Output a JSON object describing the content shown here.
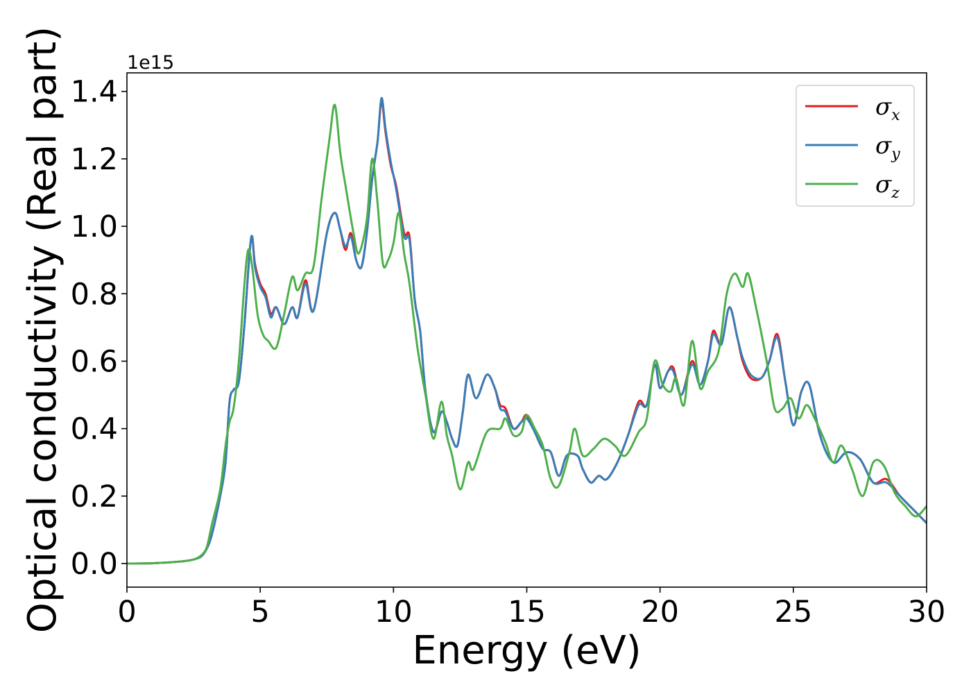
{
  "chart_data": {
    "type": "line",
    "xlabel": "Energy (eV)",
    "ylabel": "Optical conductivity (Real part)",
    "y_offset_label": "1e15",
    "xlim": [
      0,
      30
    ],
    "ylim": [
      -0.07,
      1.455
    ],
    "x_ticks": [
      0,
      5,
      10,
      15,
      20,
      25,
      30
    ],
    "x_tick_labels": [
      "0",
      "5",
      "10",
      "15",
      "20",
      "25",
      "30"
    ],
    "y_ticks": [
      0.0,
      0.2,
      0.4,
      0.6,
      0.8,
      1.0,
      1.2,
      1.4
    ],
    "y_tick_labels": [
      "0.0",
      "0.2",
      "0.4",
      "0.6",
      "0.8",
      "1.0",
      "1.2",
      "1.4"
    ],
    "grid": false,
    "legend_position": "top-right",
    "series": [
      {
        "name": "σx",
        "legend_symbol": "σ",
        "legend_sub": "x",
        "color": "#e41a1c",
        "points": [
          [
            0,
            0
          ],
          [
            1,
            0.001
          ],
          [
            2,
            0.006
          ],
          [
            2.5,
            0.012
          ],
          [
            2.8,
            0.022
          ],
          [
            3,
            0.045
          ],
          [
            3.2,
            0.09
          ],
          [
            3.5,
            0.2
          ],
          [
            3.7,
            0.3
          ],
          [
            3.85,
            0.48
          ],
          [
            4,
            0.515
          ],
          [
            4.2,
            0.54
          ],
          [
            4.4,
            0.7
          ],
          [
            4.6,
            0.92
          ],
          [
            4.7,
            0.97
          ],
          [
            4.8,
            0.89
          ],
          [
            5,
            0.83
          ],
          [
            5.2,
            0.8
          ],
          [
            5.4,
            0.74
          ],
          [
            5.6,
            0.76
          ],
          [
            5.9,
            0.71
          ],
          [
            6.2,
            0.76
          ],
          [
            6.4,
            0.73
          ],
          [
            6.7,
            0.84
          ],
          [
            7,
            0.75
          ],
          [
            7.5,
            0.98
          ],
          [
            7.8,
            1.04
          ],
          [
            8,
            0.99
          ],
          [
            8.2,
            0.93
          ],
          [
            8.4,
            0.98
          ],
          [
            8.6,
            0.9
          ],
          [
            8.8,
            0.88
          ],
          [
            9,
            0.98
          ],
          [
            9.2,
            1.14
          ],
          [
            9.4,
            1.25
          ],
          [
            9.55,
            1.37
          ],
          [
            9.7,
            1.28
          ],
          [
            9.9,
            1.18
          ],
          [
            10.1,
            1.12
          ],
          [
            10.4,
            0.98
          ],
          [
            10.6,
            0.97
          ],
          [
            10.8,
            0.78
          ],
          [
            11,
            0.69
          ],
          [
            11.2,
            0.51
          ],
          [
            11.5,
            0.39
          ],
          [
            11.8,
            0.45
          ],
          [
            12,
            0.42
          ],
          [
            12.2,
            0.37
          ],
          [
            12.4,
            0.35
          ],
          [
            12.6,
            0.45
          ],
          [
            12.8,
            0.56
          ],
          [
            13.1,
            0.49
          ],
          [
            13.5,
            0.56
          ],
          [
            13.8,
            0.52
          ],
          [
            14,
            0.47
          ],
          [
            14.2,
            0.46
          ],
          [
            14.5,
            0.4
          ],
          [
            14.8,
            0.42
          ],
          [
            15,
            0.44
          ],
          [
            15.3,
            0.39
          ],
          [
            15.6,
            0.34
          ],
          [
            15.9,
            0.33
          ],
          [
            16.2,
            0.26
          ],
          [
            16.5,
            0.32
          ],
          [
            16.9,
            0.32
          ],
          [
            17.1,
            0.28
          ],
          [
            17.4,
            0.24
          ],
          [
            17.7,
            0.26
          ],
          [
            18,
            0.25
          ],
          [
            18.4,
            0.3
          ],
          [
            18.8,
            0.38
          ],
          [
            19.2,
            0.48
          ],
          [
            19.5,
            0.47
          ],
          [
            19.8,
            0.59
          ],
          [
            20,
            0.52
          ],
          [
            20.3,
            0.57
          ],
          [
            20.5,
            0.58
          ],
          [
            20.8,
            0.5
          ],
          [
            21.2,
            0.6
          ],
          [
            21.5,
            0.53
          ],
          [
            21.8,
            0.6
          ],
          [
            22,
            0.69
          ],
          [
            22.3,
            0.65
          ],
          [
            22.6,
            0.76
          ],
          [
            22.9,
            0.67
          ],
          [
            23.1,
            0.6
          ],
          [
            23.4,
            0.55
          ],
          [
            23.8,
            0.55
          ],
          [
            24.1,
            0.6
          ],
          [
            24.4,
            0.68
          ],
          [
            24.7,
            0.54
          ],
          [
            25,
            0.41
          ],
          [
            25.3,
            0.51
          ],
          [
            25.6,
            0.53
          ],
          [
            26,
            0.38
          ],
          [
            26.5,
            0.3
          ],
          [
            27,
            0.33
          ],
          [
            27.5,
            0.31
          ],
          [
            28,
            0.24
          ],
          [
            28.5,
            0.25
          ],
          [
            29,
            0.2
          ],
          [
            29.5,
            0.16
          ],
          [
            30,
            0.12
          ]
        ]
      },
      {
        "name": "σy",
        "legend_symbol": "σ",
        "legend_sub": "y",
        "color": "#377eb8",
        "points": [
          [
            0,
            0
          ],
          [
            1,
            0.001
          ],
          [
            2,
            0.006
          ],
          [
            2.5,
            0.012
          ],
          [
            2.8,
            0.022
          ],
          [
            3,
            0.045
          ],
          [
            3.2,
            0.09
          ],
          [
            3.5,
            0.2
          ],
          [
            3.7,
            0.3
          ],
          [
            3.85,
            0.48
          ],
          [
            4,
            0.515
          ],
          [
            4.2,
            0.54
          ],
          [
            4.4,
            0.7
          ],
          [
            4.6,
            0.92
          ],
          [
            4.7,
            0.97
          ],
          [
            4.8,
            0.88
          ],
          [
            5,
            0.82
          ],
          [
            5.2,
            0.79
          ],
          [
            5.4,
            0.73
          ],
          [
            5.6,
            0.76
          ],
          [
            5.9,
            0.71
          ],
          [
            6.2,
            0.76
          ],
          [
            6.4,
            0.73
          ],
          [
            6.7,
            0.83
          ],
          [
            7,
            0.75
          ],
          [
            7.5,
            0.98
          ],
          [
            7.8,
            1.04
          ],
          [
            8,
            0.99
          ],
          [
            8.2,
            0.94
          ],
          [
            8.4,
            0.97
          ],
          [
            8.6,
            0.9
          ],
          [
            8.8,
            0.88
          ],
          [
            9,
            0.98
          ],
          [
            9.2,
            1.14
          ],
          [
            9.4,
            1.25
          ],
          [
            9.55,
            1.38
          ],
          [
            9.7,
            1.29
          ],
          [
            9.9,
            1.19
          ],
          [
            10.1,
            1.11
          ],
          [
            10.4,
            0.97
          ],
          [
            10.6,
            0.96
          ],
          [
            10.8,
            0.78
          ],
          [
            11,
            0.69
          ],
          [
            11.2,
            0.51
          ],
          [
            11.5,
            0.39
          ],
          [
            11.8,
            0.45
          ],
          [
            12,
            0.42
          ],
          [
            12.2,
            0.37
          ],
          [
            12.4,
            0.35
          ],
          [
            12.6,
            0.45
          ],
          [
            12.8,
            0.56
          ],
          [
            13.1,
            0.49
          ],
          [
            13.5,
            0.56
          ],
          [
            13.8,
            0.52
          ],
          [
            14,
            0.46
          ],
          [
            14.2,
            0.45
          ],
          [
            14.5,
            0.4
          ],
          [
            14.8,
            0.42
          ],
          [
            15,
            0.43
          ],
          [
            15.3,
            0.39
          ],
          [
            15.6,
            0.34
          ],
          [
            15.9,
            0.33
          ],
          [
            16.2,
            0.26
          ],
          [
            16.5,
            0.32
          ],
          [
            16.9,
            0.32
          ],
          [
            17.1,
            0.28
          ],
          [
            17.4,
            0.24
          ],
          [
            17.7,
            0.26
          ],
          [
            18,
            0.25
          ],
          [
            18.4,
            0.3
          ],
          [
            18.8,
            0.38
          ],
          [
            19.2,
            0.47
          ],
          [
            19.5,
            0.47
          ],
          [
            19.8,
            0.59
          ],
          [
            20,
            0.52
          ],
          [
            20.3,
            0.57
          ],
          [
            20.5,
            0.57
          ],
          [
            20.8,
            0.5
          ],
          [
            21.2,
            0.59
          ],
          [
            21.5,
            0.53
          ],
          [
            21.8,
            0.6
          ],
          [
            22,
            0.68
          ],
          [
            22.3,
            0.65
          ],
          [
            22.6,
            0.76
          ],
          [
            22.9,
            0.67
          ],
          [
            23.1,
            0.61
          ],
          [
            23.4,
            0.56
          ],
          [
            23.8,
            0.55
          ],
          [
            24.1,
            0.6
          ],
          [
            24.4,
            0.67
          ],
          [
            24.7,
            0.54
          ],
          [
            25,
            0.41
          ],
          [
            25.3,
            0.51
          ],
          [
            25.6,
            0.53
          ],
          [
            26,
            0.38
          ],
          [
            26.5,
            0.3
          ],
          [
            27,
            0.33
          ],
          [
            27.5,
            0.31
          ],
          [
            28,
            0.24
          ],
          [
            28.5,
            0.24
          ],
          [
            29,
            0.2
          ],
          [
            29.5,
            0.16
          ],
          [
            30,
            0.12
          ]
        ]
      },
      {
        "name": "σz",
        "legend_symbol": "σ",
        "legend_sub": "z",
        "color": "#4daf4a",
        "points": [
          [
            0,
            0
          ],
          [
            1,
            0.001
          ],
          [
            2,
            0.006
          ],
          [
            2.5,
            0.012
          ],
          [
            2.8,
            0.025
          ],
          [
            3,
            0.05
          ],
          [
            3.2,
            0.12
          ],
          [
            3.5,
            0.22
          ],
          [
            3.7,
            0.35
          ],
          [
            3.85,
            0.42
          ],
          [
            4,
            0.46
          ],
          [
            4.2,
            0.6
          ],
          [
            4.4,
            0.82
          ],
          [
            4.55,
            0.93
          ],
          [
            4.7,
            0.88
          ],
          [
            4.9,
            0.74
          ],
          [
            5.1,
            0.68
          ],
          [
            5.3,
            0.66
          ],
          [
            5.6,
            0.64
          ],
          [
            5.9,
            0.74
          ],
          [
            6.2,
            0.85
          ],
          [
            6.4,
            0.81
          ],
          [
            6.7,
            0.86
          ],
          [
            7,
            0.88
          ],
          [
            7.3,
            1.08
          ],
          [
            7.6,
            1.26
          ],
          [
            7.8,
            1.36
          ],
          [
            8,
            1.22
          ],
          [
            8.2,
            1.12
          ],
          [
            8.5,
            0.98
          ],
          [
            8.7,
            0.92
          ],
          [
            9,
            1.02
          ],
          [
            9.2,
            1.2
          ],
          [
            9.4,
            1.07
          ],
          [
            9.6,
            0.89
          ],
          [
            9.8,
            0.9
          ],
          [
            10,
            0.95
          ],
          [
            10.2,
            1.04
          ],
          [
            10.4,
            0.92
          ],
          [
            10.6,
            0.83
          ],
          [
            10.9,
            0.64
          ],
          [
            11.2,
            0.5
          ],
          [
            11.5,
            0.37
          ],
          [
            11.8,
            0.48
          ],
          [
            12,
            0.38
          ],
          [
            12.2,
            0.32
          ],
          [
            12.5,
            0.22
          ],
          [
            12.8,
            0.3
          ],
          [
            13,
            0.28
          ],
          [
            13.5,
            0.39
          ],
          [
            14,
            0.4
          ],
          [
            14.2,
            0.43
          ],
          [
            14.5,
            0.38
          ],
          [
            14.8,
            0.39
          ],
          [
            15,
            0.44
          ],
          [
            15.3,
            0.4
          ],
          [
            15.6,
            0.35
          ],
          [
            15.9,
            0.25
          ],
          [
            16.2,
            0.23
          ],
          [
            16.6,
            0.33
          ],
          [
            16.8,
            0.4
          ],
          [
            17.1,
            0.32
          ],
          [
            17.5,
            0.34
          ],
          [
            17.9,
            0.37
          ],
          [
            18.3,
            0.35
          ],
          [
            18.7,
            0.32
          ],
          [
            19.2,
            0.39
          ],
          [
            19.5,
            0.43
          ],
          [
            19.8,
            0.6
          ],
          [
            20.1,
            0.53
          ],
          [
            20.4,
            0.51
          ],
          [
            20.6,
            0.55
          ],
          [
            20.9,
            0.47
          ],
          [
            21.2,
            0.66
          ],
          [
            21.5,
            0.52
          ],
          [
            21.8,
            0.57
          ],
          [
            22.2,
            0.63
          ],
          [
            22.5,
            0.8
          ],
          [
            22.8,
            0.86
          ],
          [
            23.1,
            0.82
          ],
          [
            23.3,
            0.86
          ],
          [
            23.6,
            0.76
          ],
          [
            24,
            0.6
          ],
          [
            24.3,
            0.46
          ],
          [
            24.6,
            0.46
          ],
          [
            24.9,
            0.49
          ],
          [
            25.2,
            0.43
          ],
          [
            25.5,
            0.47
          ],
          [
            25.8,
            0.43
          ],
          [
            26.2,
            0.36
          ],
          [
            26.5,
            0.3
          ],
          [
            26.8,
            0.35
          ],
          [
            27.2,
            0.28
          ],
          [
            27.6,
            0.2
          ],
          [
            28,
            0.3
          ],
          [
            28.4,
            0.29
          ],
          [
            28.8,
            0.21
          ],
          [
            29.2,
            0.17
          ],
          [
            29.6,
            0.14
          ],
          [
            30,
            0.17
          ]
        ]
      }
    ]
  }
}
